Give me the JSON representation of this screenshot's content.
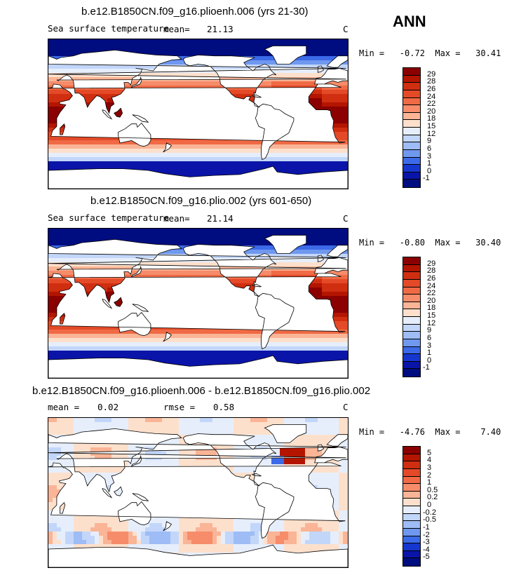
{
  "season": "ANN",
  "panels": [
    {
      "title": "b.e12.B1850CN.f09_g16.plioenh.006 (yrs 21-30)",
      "variable": "Sea surface temperature",
      "stat1_label": "mean=",
      "stat1_value": "21.13",
      "stat2_label": "",
      "stat2_value": "",
      "unit": "C",
      "minmax": "Min =   -0.72  Max =   30.41",
      "kind": "abs",
      "levels": [
        "29",
        "28",
        "26",
        "24",
        "22",
        "20",
        "18",
        "15",
        "12",
        "9",
        "6",
        "3",
        "1",
        "0",
        "-1"
      ],
      "colors": [
        "#8b0000",
        "#b31500",
        "#d02e10",
        "#e44a28",
        "#f06a45",
        "#f68c6a",
        "#fab496",
        "#fde0cc",
        "#e6eefc",
        "#c2d6fa",
        "#9ebcf5",
        "#6f98ef",
        "#3c6ae8",
        "#1537cf",
        "#0a14a8",
        "#000d80"
      ]
    },
    {
      "title": "b.e12.B1850CN.f09_g16.plio.002 (yrs 601-650)",
      "variable": "Sea surface temperature",
      "stat1_label": "mean=",
      "stat1_value": "21.14",
      "stat2_label": "",
      "stat2_value": "",
      "unit": "C",
      "minmax": "Min =   -0.80  Max =   30.40",
      "kind": "abs",
      "levels": [
        "29",
        "28",
        "26",
        "24",
        "22",
        "20",
        "18",
        "15",
        "12",
        "9",
        "6",
        "3",
        "1",
        "0",
        "-1"
      ],
      "colors": [
        "#8b0000",
        "#b31500",
        "#d02e10",
        "#e44a28",
        "#f06a45",
        "#f68c6a",
        "#fab496",
        "#fde0cc",
        "#e6eefc",
        "#c2d6fa",
        "#9ebcf5",
        "#6f98ef",
        "#3c6ae8",
        "#1537cf",
        "#0a14a8",
        "#000d80"
      ]
    },
    {
      "title": "b.e12.B1850CN.f09_g16.plioenh.006 - b.e12.B1850CN.f09_g16.plio.002",
      "variable": "",
      "stat1_label": "mean =",
      "stat1_value": "0.02",
      "stat2_label": "rmse =",
      "stat2_value": "0.58",
      "unit": "C",
      "minmax": "Min =   -4.76  Max =    7.40",
      "kind": "diff",
      "levels": [
        "5",
        "4",
        "3",
        "2",
        "1",
        "0.5",
        "0.2",
        "0",
        "-0.2",
        "-0.5",
        "-1",
        "-2",
        "-3",
        "-4",
        "-5"
      ],
      "colors": [
        "#8b0000",
        "#b31500",
        "#d02e10",
        "#e44a28",
        "#f06a45",
        "#f68c6a",
        "#fab496",
        "#fde0cc",
        "#e6eefc",
        "#c2d6fa",
        "#9ebcf5",
        "#6f98ef",
        "#3c6ae8",
        "#1537cf",
        "#0a14a8",
        "#000d80"
      ]
    }
  ]
}
